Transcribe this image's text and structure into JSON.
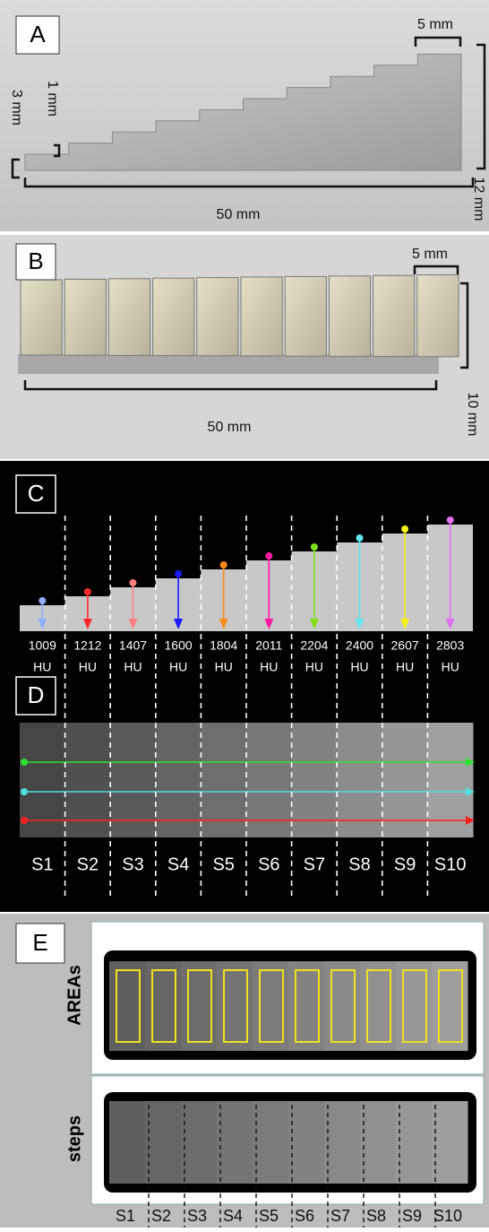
{
  "panel_a": {
    "label": "A",
    "step_width": "5 mm",
    "step_height": "1 mm",
    "base_height": "3 mm",
    "total_height": "12 mm",
    "length": "50 mm"
  },
  "panel_b": {
    "label": "B",
    "step_width": "5 mm",
    "width": "10 mm",
    "length": "50 mm"
  },
  "panel_c": {
    "label": "C",
    "hu_values": [
      1009,
      1212,
      1407,
      1600,
      1804,
      2011,
      2204,
      2400,
      2607,
      2803
    ],
    "unit": "HU"
  },
  "panel_d": {
    "label": "D",
    "steps": [
      "S1",
      "S2",
      "S3",
      "S4",
      "S5",
      "S6",
      "S7",
      "S8",
      "S9",
      "S10"
    ]
  },
  "panel_e": {
    "label": "E",
    "top_window": "AREAs",
    "bottom_window": "steps",
    "steps": [
      "S1",
      "S2",
      "S3",
      "S4",
      "S5",
      "S6",
      "S7",
      "S8",
      "S9",
      "S10"
    ]
  }
}
